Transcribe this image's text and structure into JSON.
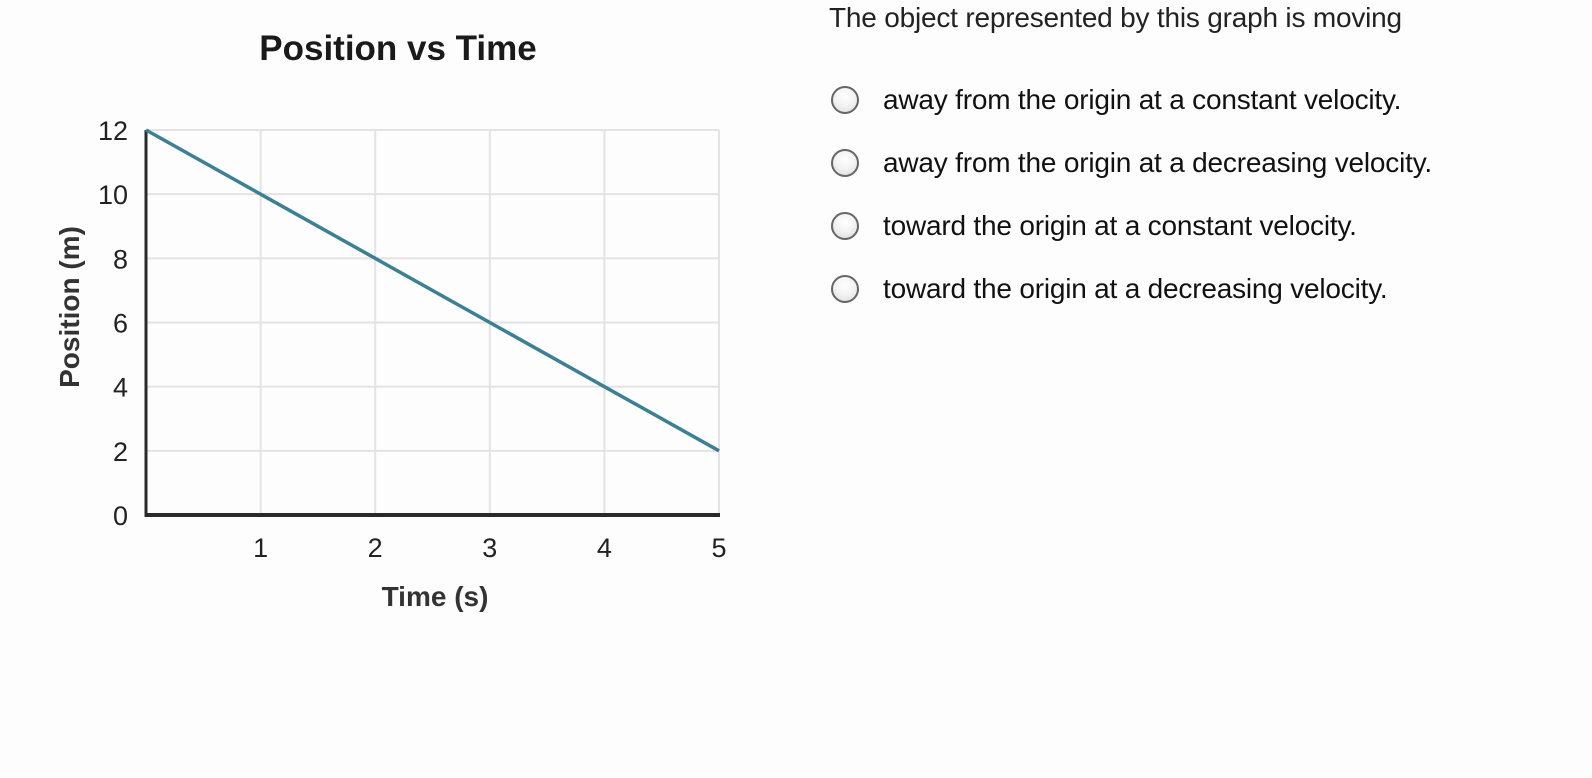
{
  "chart_data": {
    "type": "line",
    "title": "Position vs Time",
    "xlabel": "Time (s)",
    "ylabel": "Position (m)",
    "xlim": [
      0,
      5
    ],
    "ylim": [
      0,
      12
    ],
    "x_ticks": [
      "1",
      "2",
      "3",
      "4",
      "5"
    ],
    "y_ticks": [
      "0",
      "2",
      "4",
      "6",
      "8",
      "10",
      "12"
    ],
    "grid": true,
    "series": [
      {
        "x": [
          0,
          1,
          2,
          3,
          4,
          5
        ],
        "y": [
          12,
          10,
          8,
          6,
          4,
          2
        ],
        "color": "#3d7f93"
      }
    ]
  },
  "question": {
    "prompt": "The object represented by this graph is moving",
    "options": [
      {
        "label": "away from the origin at a constant velocity."
      },
      {
        "label": "away from the origin at a decreasing velocity."
      },
      {
        "label": "toward the origin at a constant velocity."
      },
      {
        "label": "toward the origin at a decreasing velocity."
      }
    ]
  }
}
